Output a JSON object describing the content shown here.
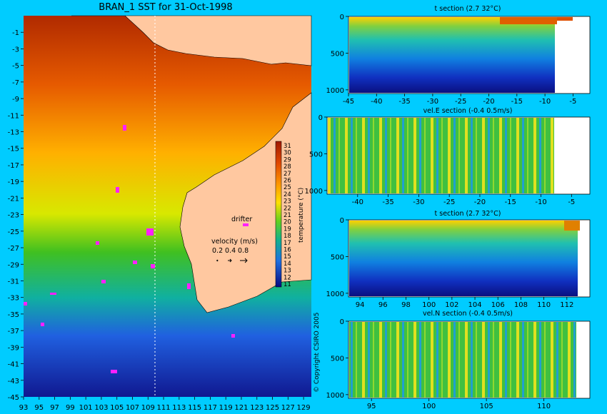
{
  "chart_data": [
    {
      "type": "heatmap",
      "title": "BRAN_1 SST for 31-Oct-1998",
      "x_ticks": [
        "93",
        "95",
        "97",
        "99",
        "101",
        "103",
        "105",
        "107",
        "109",
        "111",
        "113",
        "115",
        "117",
        "119",
        "121",
        "123",
        "125",
        "127",
        "129"
      ],
      "y_ticks": [
        "-1",
        "-3",
        "-5",
        "-7",
        "-9",
        "-11",
        "-13",
        "-15",
        "-17",
        "-19",
        "-21",
        "-23",
        "-25",
        "-27",
        "-29",
        "-31",
        "-33",
        "-35",
        "-37",
        "-39",
        "-41",
        "-43",
        "-45"
      ],
      "xlim": [
        93,
        130
      ],
      "ylim": [
        -45,
        1
      ],
      "colorbar": {
        "label": "temperature (°C)",
        "ticks": [
          "31",
          "30",
          "29",
          "28",
          "27",
          "26",
          "25",
          "24",
          "23",
          "22",
          "21",
          "20",
          "19",
          "18",
          "17",
          "16",
          "15",
          "14",
          "13",
          "12",
          "11"
        ]
      },
      "legend": {
        "drifter_label": "drifter",
        "velocity_title": "velocity (m/s)",
        "velocity_values": [
          "0.2",
          "0.4",
          "0.8"
        ]
      },
      "section_longitude": 110.5,
      "copyright": "© Copyright CSIRO 2005"
    },
    {
      "type": "heatmap",
      "title": "t section (2.7      32°C)",
      "x_ticks": [
        "-45",
        "-40",
        "-35",
        "-30",
        "-25",
        "-20",
        "-15",
        "-10",
        "-5"
      ],
      "y_ticks": [
        "0",
        "500",
        "1000"
      ],
      "xlim": [
        -45,
        -2
      ],
      "ylim": [
        1050,
        0
      ]
    },
    {
      "type": "heatmap",
      "title": "vel.E section (-0.4      0.5m/s)",
      "x_ticks": [
        "-40",
        "-35",
        "-30",
        "-25",
        "-20",
        "-15",
        "-10",
        "-5"
      ],
      "y_ticks": [
        "0",
        "500",
        "1000"
      ],
      "xlim": [
        -45,
        -2
      ],
      "ylim": [
        1050,
        0
      ]
    },
    {
      "type": "heatmap",
      "title": "t section (2.7      32°C)",
      "x_ticks": [
        "94",
        "96",
        "98",
        "100",
        "102",
        "104",
        "106",
        "108",
        "110",
        "112"
      ],
      "y_ticks": [
        "0",
        "500",
        "1000"
      ],
      "xlim": [
        93,
        114
      ],
      "ylim": [
        1050,
        0
      ]
    },
    {
      "type": "heatmap",
      "title": "vel.N section (-0.4      0.5m/s)",
      "x_ticks": [
        "95",
        "100",
        "105",
        "110"
      ],
      "y_ticks": [
        "0",
        "500",
        "1000"
      ],
      "xlim": [
        93,
        114
      ],
      "ylim": [
        1050,
        0
      ]
    }
  ]
}
